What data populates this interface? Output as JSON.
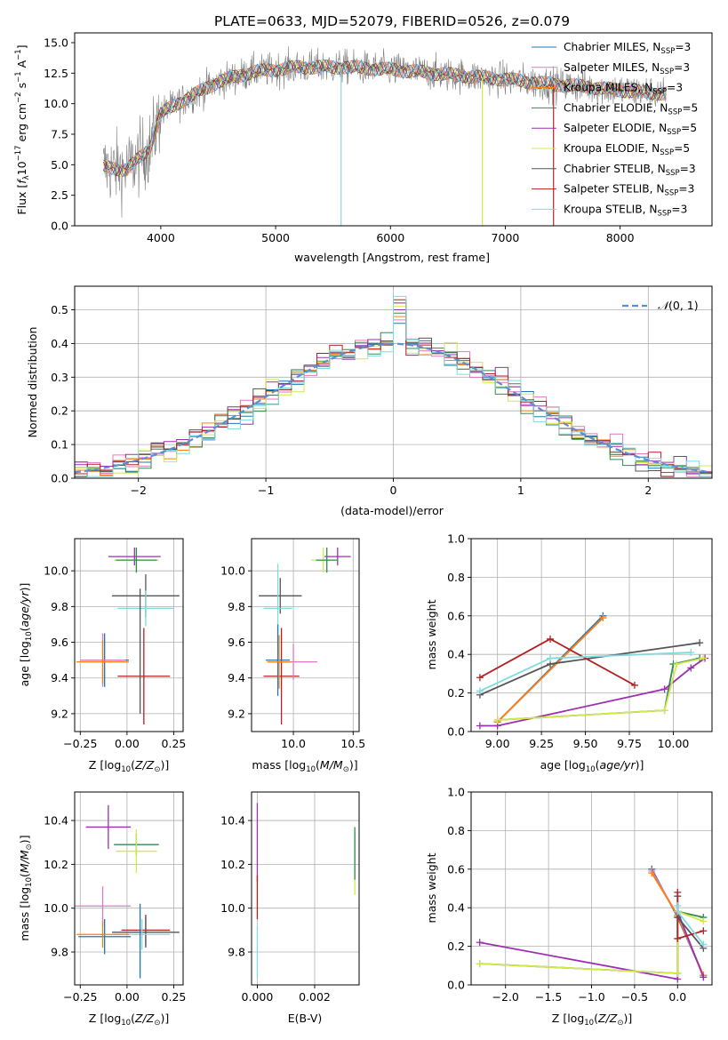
{
  "title": "PLATE=0633, MJD=52079, FIBERID=0526, z=0.079",
  "colors": {
    "Chabrier MILES": "#1f77b4",
    "Salpeter MILES": "#e377c2",
    "Kroupa MILES": "#ff7f0e",
    "Chabrier ELODIE": "#2e8b57",
    "Salpeter ELODIE": "#9b30b0",
    "Kroupa ELODIE": "#d4e84a",
    "Chabrier STELIB": "#555555",
    "Salpeter STELIB": "#b22222",
    "Kroupa STELIB": "#7fdbe0",
    "normal": "#5b8ed6",
    "data": "#808080"
  },
  "chart_data": [
    {
      "id": "spectrum",
      "type": "line",
      "title": "PLATE=0633, MJD=52079, FIBERID=0526, z=0.079",
      "xlabel": "wavelength [Angstrom, rest frame]",
      "ylabel": "Flux [f_λ 10^-17 erg cm^-2 s^-1 A^-1]",
      "xlim": [
        3250,
        8800
      ],
      "ylim": [
        0,
        15.8
      ],
      "xticks": [
        4000,
        5000,
        6000,
        7000,
        8000
      ],
      "yticks": [
        0.0,
        2.5,
        5.0,
        7.5,
        10.0,
        12.5,
        15.0
      ],
      "grid": false,
      "legend_position": "top-right",
      "legend": [
        {
          "model": "Chabrier MILES",
          "label": "Chabrier MILES, N",
          "nssp": "=3"
        },
        {
          "model": "Salpeter MILES",
          "label": "Salpeter MILES, N",
          "nssp": "=3"
        },
        {
          "model": "Kroupa MILES",
          "label": "Kroupa MILES, N",
          "nssp": "=3"
        },
        {
          "model": "Chabrier ELODIE",
          "label": "Chabrier ELODIE, N",
          "nssp": "=5"
        },
        {
          "model": "Salpeter ELODIE",
          "label": "Salpeter ELODIE, N",
          "nssp": "=5"
        },
        {
          "model": "Kroupa ELODIE",
          "label": "Kroupa ELODIE, N",
          "nssp": "=5"
        },
        {
          "model": "Chabrier STELIB",
          "label": "Chabrier STELIB, N",
          "nssp": "=3"
        },
        {
          "model": "Salpeter STELIB",
          "label": "Salpeter STELIB, N",
          "nssp": "=3"
        },
        {
          "model": "Kroupa STELIB",
          "label": "Kroupa STELIB, N",
          "nssp": "=3"
        }
      ],
      "continuum": {
        "x": [
          3500,
          3700,
          3900,
          4000,
          4200,
          4500,
          4800,
          5200,
          5600,
          6000,
          6500,
          7000,
          7400,
          7700,
          8000,
          8400
        ],
        "y": [
          4.8,
          4.6,
          6.3,
          9.2,
          10.3,
          11.8,
          12.6,
          13.0,
          13.0,
          12.8,
          12.4,
          12.0,
          11.6,
          11.4,
          11.1,
          10.8
        ]
      },
      "drops": [
        {
          "model": "Kroupa STELIB",
          "x": 5570
        },
        {
          "model": "Kroupa ELODIE",
          "x": 6800
        },
        {
          "model": "Salpeter STELIB",
          "x": 7420
        }
      ]
    },
    {
      "id": "residuals",
      "type": "step",
      "xlabel": "(data-model)/error",
      "ylabel": "Normed distribution",
      "xlim": [
        -2.5,
        2.5
      ],
      "ylim": [
        0,
        0.57
      ],
      "xticks": [
        -2,
        -1,
        0,
        1,
        2
      ],
      "yticks": [
        0.0,
        0.1,
        0.2,
        0.3,
        0.4,
        0.5
      ],
      "grid": true,
      "legend_position": "top-right",
      "legend_label": "N(0,1)",
      "bin_width": 0.1
    },
    {
      "id": "age-vs-Z",
      "type": "errorbar",
      "xlabel": "Z [log10(Z/Z☉)]",
      "ylabel": "age [log10(age/yr)]",
      "xlim": [
        -0.28,
        0.3
      ],
      "ylim": [
        9.1,
        10.18
      ],
      "xticks": [
        -0.25,
        0.0,
        0.25
      ],
      "yticks": [
        9.2,
        9.4,
        9.6,
        9.8,
        10.0
      ],
      "grid": true,
      "points": [
        {
          "model": "Salpeter ELODIE",
          "x": 0.04,
          "y": 10.08,
          "xerr": 0.14,
          "yerr": 0.05
        },
        {
          "model": "Kroupa ELODIE",
          "x": 0.05,
          "y": 10.06,
          "xerr": 0.12,
          "yerr": 0.07
        },
        {
          "model": "Chabrier ELODIE",
          "x": 0.05,
          "y": 10.06,
          "xerr": 0.11,
          "yerr": 0.07
        },
        {
          "model": "Chabrier STELIB",
          "x": 0.1,
          "y": 9.86,
          "xerr": 0.18,
          "yerr": 0.12
        },
        {
          "model": "Kroupa STELIB",
          "x": 0.1,
          "y": 9.79,
          "xerr": 0.15,
          "yerr": 0.1
        },
        {
          "model": "Salpeter STELIB",
          "x": 0.09,
          "y": 9.41,
          "xerr": 0.14,
          "yerr": 0.27
        },
        {
          "model": "Chabrier MILES",
          "x": -0.12,
          "y": 9.5,
          "xerr": 0.13,
          "yerr": 0.15
        },
        {
          "model": "Salpeter MILES",
          "x": -0.13,
          "y": 9.5,
          "xerr": 0.12,
          "yerr": 0.15
        },
        {
          "model": "Kroupa MILES",
          "x": -0.13,
          "y": 9.49,
          "xerr": 0.14,
          "yerr": 0.12
        },
        {
          "model": "Chabrier STELIB",
          "x": 0.07,
          "y": 9.55,
          "xerr": 0.0,
          "yerr": 0.35
        }
      ]
    },
    {
      "id": "age-vs-mass",
      "type": "errorbar",
      "xlabel": "mass [log10(M/M☉)]",
      "ylabel": "",
      "xlim": [
        9.65,
        10.55
      ],
      "ylim": [
        9.1,
        10.18
      ],
      "xticks": [
        10.0,
        10.5
      ],
      "yticks": [
        9.2,
        9.4,
        9.6,
        9.8,
        10.0
      ],
      "grid": true,
      "points": [
        {
          "model": "Salpeter ELODIE",
          "x": 10.37,
          "y": 10.08,
          "xerr": 0.11,
          "yerr": 0.05
        },
        {
          "model": "Kroupa ELODIE",
          "x": 10.25,
          "y": 10.06,
          "xerr": 0.1,
          "yerr": 0.07
        },
        {
          "model": "Chabrier ELODIE",
          "x": 10.28,
          "y": 10.06,
          "xerr": 0.09,
          "yerr": 0.07
        },
        {
          "model": "Chabrier STELIB",
          "x": 9.89,
          "y": 9.86,
          "xerr": 0.18,
          "yerr": 0.1
        },
        {
          "model": "Kroupa STELIB",
          "x": 9.87,
          "y": 9.79,
          "xerr": 0.12,
          "yerr": 0.25
        },
        {
          "model": "Salpeter STELIB",
          "x": 9.9,
          "y": 9.41,
          "xerr": 0.15,
          "yerr": 0.27
        },
        {
          "model": "Chabrier MILES",
          "x": 9.87,
          "y": 9.5,
          "xerr": 0.1,
          "yerr": 0.2
        },
        {
          "model": "Salpeter MILES",
          "x": 10.0,
          "y": 9.49,
          "xerr": 0.2,
          "yerr": 0.1
        },
        {
          "model": "Kroupa MILES",
          "x": 9.88,
          "y": 9.49,
          "xerr": 0.1,
          "yerr": 0.15
        }
      ]
    },
    {
      "id": "weight-vs-age",
      "type": "line",
      "xlabel": "age [log10(age/yr)]",
      "ylabel": "mass weight",
      "xlim": [
        8.85,
        10.22
      ],
      "ylim": [
        0,
        1.0
      ],
      "xticks": [
        9.0,
        9.25,
        9.5,
        9.75,
        10.0
      ],
      "yticks": [
        0.0,
        0.2,
        0.4,
        0.6,
        0.8,
        1.0
      ],
      "grid": true,
      "series": [
        {
          "model": "Chabrier MILES",
          "x": [
            9.0,
            9.6
          ],
          "y": [
            0.05,
            0.6
          ]
        },
        {
          "model": "Salpeter MILES",
          "x": [
            9.0,
            9.6
          ],
          "y": [
            0.05,
            0.59
          ]
        },
        {
          "model": "Kroupa MILES",
          "x": [
            9.0,
            9.6
          ],
          "y": [
            0.05,
            0.59
          ]
        },
        {
          "model": "Chabrier ELODIE",
          "x": [
            9.0,
            9.95,
            10.0,
            10.15
          ],
          "y": [
            0.06,
            0.11,
            0.35,
            0.38
          ]
        },
        {
          "model": "Salpeter ELODIE",
          "x": [
            8.9,
            9.0,
            9.95,
            10.1,
            10.18
          ],
          "y": [
            0.03,
            0.03,
            0.22,
            0.33,
            0.38
          ]
        },
        {
          "model": "Kroupa ELODIE",
          "x": [
            9.0,
            9.95,
            10.02,
            10.17
          ],
          "y": [
            0.06,
            0.11,
            0.35,
            0.38
          ]
        },
        {
          "model": "Chabrier STELIB",
          "x": [
            8.9,
            9.3,
            10.15
          ],
          "y": [
            0.19,
            0.35,
            0.46
          ]
        },
        {
          "model": "Salpeter STELIB",
          "x": [
            8.9,
            9.3,
            9.78
          ],
          "y": [
            0.28,
            0.48,
            0.24
          ]
        },
        {
          "model": "Kroupa STELIB",
          "x": [
            8.9,
            9.3,
            10.1
          ],
          "y": [
            0.21,
            0.38,
            0.41
          ]
        }
      ]
    },
    {
      "id": "mass-vs-Z",
      "type": "errorbar",
      "xlabel": "Z [log10(Z/Z☉)]",
      "ylabel": "mass [log10(M/M☉)]",
      "xlim": [
        -0.28,
        0.3
      ],
      "ylim": [
        9.65,
        10.53
      ],
      "xticks": [
        -0.25,
        0.0,
        0.25
      ],
      "yticks": [
        9.8,
        10.0,
        10.2,
        10.4
      ],
      "grid": true,
      "points": [
        {
          "model": "Salpeter ELODIE",
          "x": -0.1,
          "y": 10.37,
          "xerr": 0.12,
          "yerr": 0.1
        },
        {
          "model": "Chabrier ELODIE",
          "x": 0.05,
          "y": 10.29,
          "xerr": 0.12,
          "yerr": 0.05
        },
        {
          "model": "Kroupa ELODIE",
          "x": 0.05,
          "y": 10.26,
          "xerr": 0.11,
          "yerr": 0.1
        },
        {
          "model": "Salpeter MILES",
          "x": -0.13,
          "y": 10.01,
          "xerr": 0.15,
          "yerr": 0.09
        },
        {
          "model": "Salpeter STELIB",
          "x": 0.1,
          "y": 9.9,
          "xerr": 0.13,
          "yerr": 0.07
        },
        {
          "model": "Chabrier STELIB",
          "x": 0.1,
          "y": 9.89,
          "xerr": 0.18,
          "yerr": 0.07
        },
        {
          "model": "Kroupa STELIB",
          "x": 0.08,
          "y": 9.88,
          "xerr": 0.15,
          "yerr": 0.07
        },
        {
          "model": "Chabrier MILES",
          "x": -0.12,
          "y": 9.87,
          "xerr": 0.14,
          "yerr": 0.08
        },
        {
          "model": "Kroupa MILES",
          "x": -0.13,
          "y": 9.88,
          "xerr": 0.14,
          "yerr": 0.06
        },
        {
          "model": "Chabrier MILES",
          "x": 0.07,
          "y": 9.85,
          "xerr": 0.0,
          "yerr": 0.17
        }
      ]
    },
    {
      "id": "mass-vs-EBV",
      "type": "errorbar",
      "xlabel": "E(B-V)",
      "ylabel": "",
      "xlim": [
        -0.0002,
        0.00355
      ],
      "ylim": [
        9.65,
        10.53
      ],
      "xticks": [
        0.0,
        0.002
      ],
      "yticks": [
        9.8,
        10.0,
        10.2,
        10.4
      ],
      "grid": true,
      "points": [
        {
          "model": "Salpeter ELODIE",
          "x": 0.0,
          "y": 10.3,
          "xerr": 0.0,
          "yerr": 0.18
        },
        {
          "model": "Salpeter STELIB",
          "x": 0.0,
          "y": 10.05,
          "xerr": 0.0,
          "yerr": 0.1
        },
        {
          "model": "Kroupa STELIB",
          "x": 0.0,
          "y": 9.8,
          "xerr": 0.0,
          "yerr": 0.12
        },
        {
          "model": "Kroupa ELODIE",
          "x": 0.0034,
          "y": 10.2,
          "xerr": 0.0,
          "yerr": 0.14
        },
        {
          "model": "Chabrier ELODIE",
          "x": 0.0034,
          "y": 10.25,
          "xerr": 0.0,
          "yerr": 0.12
        }
      ]
    },
    {
      "id": "weight-vs-Z",
      "type": "line",
      "xlabel": "Z [log10(Z/Z☉)]",
      "ylabel": "mass weight",
      "xlim": [
        -2.4,
        0.4
      ],
      "ylim": [
        0,
        1.0
      ],
      "xticks": [
        -2.0,
        -1.5,
        -1.0,
        -0.5,
        0.0
      ],
      "yticks": [
        0.0,
        0.2,
        0.4,
        0.6,
        0.8,
        1.0
      ],
      "grid": true,
      "series": [
        {
          "model": "Chabrier MILES",
          "x": [
            -0.3,
            0.0,
            0.3
          ],
          "y": [
            0.6,
            0.35,
            0.05
          ]
        },
        {
          "model": "Salpeter MILES",
          "x": [
            -0.3,
            0.0,
            0.3
          ],
          "y": [
            0.59,
            0.36,
            0.05
          ]
        },
        {
          "model": "Kroupa MILES",
          "x": [
            -0.3,
            0.0,
            0.3
          ],
          "y": [
            0.58,
            0.36,
            0.05
          ]
        },
        {
          "model": "Chabrier ELODIE",
          "x": [
            -2.3,
            0.0,
            0.0,
            0.3
          ],
          "y": [
            0.11,
            0.06,
            0.38,
            0.35
          ]
        },
        {
          "model": "Salpeter ELODIE",
          "x": [
            -2.3,
            0.0,
            0.0,
            0.3
          ],
          "y": [
            0.22,
            0.03,
            0.38,
            0.04
          ]
        },
        {
          "model": "Kroupa ELODIE",
          "x": [
            -2.3,
            0.0,
            0.0,
            0.3
          ],
          "y": [
            0.11,
            0.06,
            0.38,
            0.33
          ]
        },
        {
          "model": "Chabrier STELIB",
          "x": [
            0.0,
            0.0,
            0.3
          ],
          "y": [
            0.46,
            0.35,
            0.19
          ]
        },
        {
          "model": "Salpeter STELIB",
          "x": [
            0.0,
            0.0,
            0.3
          ],
          "y": [
            0.48,
            0.24,
            0.28
          ]
        },
        {
          "model": "Kroupa STELIB",
          "x": [
            0.0,
            0.0,
            0.3
          ],
          "y": [
            0.41,
            0.38,
            0.21
          ]
        }
      ]
    }
  ]
}
